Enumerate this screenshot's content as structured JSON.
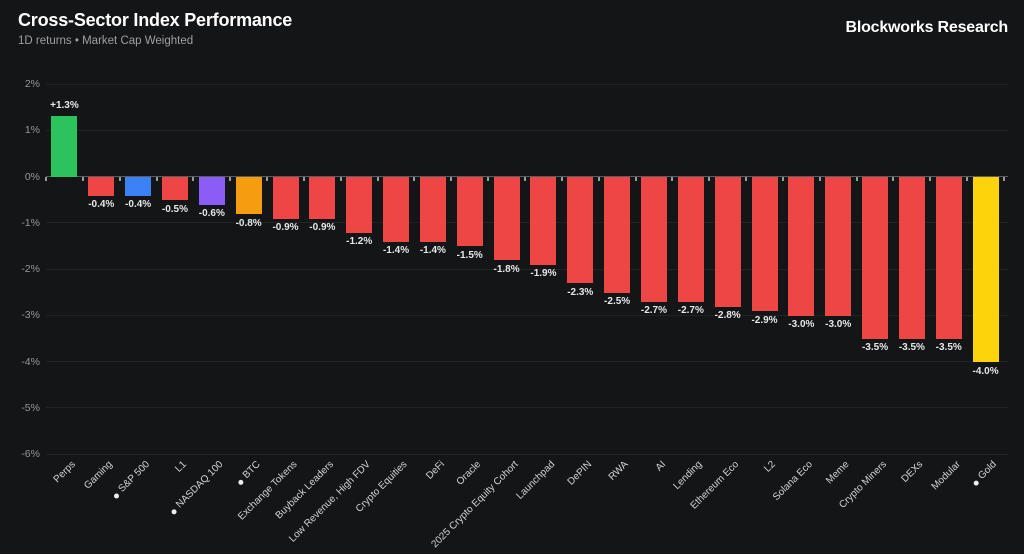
{
  "header": {
    "title": "Cross-Sector Index Performance",
    "subtitle": "1D returns • Market Cap Weighted",
    "brand": "Blockworks Research"
  },
  "chart_data": {
    "type": "bar",
    "title": "Cross-Sector Index Performance",
    "subtitle": "1D returns • Market Cap Weighted",
    "xlabel": "",
    "ylabel": "",
    "ylim": [
      -6,
      2
    ],
    "grid": "horizontal",
    "legend": "none",
    "yticks": [
      {
        "v": 2,
        "label": "2%"
      },
      {
        "v": 1,
        "label": "1%"
      },
      {
        "v": 0,
        "label": "0%"
      },
      {
        "v": -1,
        "label": "-1%"
      },
      {
        "v": -2,
        "label": "-2%"
      },
      {
        "v": -3,
        "label": "-3%"
      },
      {
        "v": -4,
        "label": "-4%"
      },
      {
        "v": -5,
        "label": "-5%"
      },
      {
        "v": -6,
        "label": "-6%"
      }
    ],
    "colors": {
      "green": "#2bc35e",
      "red": "#ee4545",
      "blue": "#3b82f6",
      "purple": "#8b5cf6",
      "orange": "#f59c0f",
      "yellow": "#fdd40c"
    },
    "bars": [
      {
        "label": "Perps",
        "value": 1.3,
        "display": "+1.3%",
        "color": "green",
        "benchmark": false
      },
      {
        "label": "Gaming",
        "value": -0.4,
        "display": "-0.4%",
        "color": "red",
        "benchmark": false
      },
      {
        "label": "S&P 500",
        "value": -0.4,
        "display": "-0.4%",
        "color": "blue",
        "benchmark": true
      },
      {
        "label": "L1",
        "value": -0.5,
        "display": "-0.5%",
        "color": "red",
        "benchmark": false
      },
      {
        "label": "NASDAQ 100",
        "value": -0.6,
        "display": "-0.6%",
        "color": "purple",
        "benchmark": true
      },
      {
        "label": "BTC",
        "value": -0.8,
        "display": "-0.8%",
        "color": "orange",
        "benchmark": true
      },
      {
        "label": "Exchange Tokens",
        "value": -0.9,
        "display": "-0.9%",
        "color": "red",
        "benchmark": false
      },
      {
        "label": "Buyback Leaders",
        "value": -0.9,
        "display": "-0.9%",
        "color": "red",
        "benchmark": false
      },
      {
        "label": "Low Revenue, High FDV",
        "value": -1.2,
        "display": "-1.2%",
        "color": "red",
        "benchmark": false
      },
      {
        "label": "Crypto Equities",
        "value": -1.4,
        "display": "-1.4%",
        "color": "red",
        "benchmark": false
      },
      {
        "label": "DeFi",
        "value": -1.4,
        "display": "-1.4%",
        "color": "red",
        "benchmark": false
      },
      {
        "label": "Oracle",
        "value": -1.5,
        "display": "-1.5%",
        "color": "red",
        "benchmark": false
      },
      {
        "label": "2025 Crypto Equity Cohort",
        "value": -1.8,
        "display": "-1.8%",
        "color": "red",
        "benchmark": false
      },
      {
        "label": "Launchpad",
        "value": -1.9,
        "display": "-1.9%",
        "color": "red",
        "benchmark": false
      },
      {
        "label": "DePIN",
        "value": -2.3,
        "display": "-2.3%",
        "color": "red",
        "benchmark": false
      },
      {
        "label": "RWA",
        "value": -2.5,
        "display": "-2.5%",
        "color": "red",
        "benchmark": false
      },
      {
        "label": "AI",
        "value": -2.7,
        "display": "-2.7%",
        "color": "red",
        "benchmark": false
      },
      {
        "label": "Lending",
        "value": -2.7,
        "display": "-2.7%",
        "color": "red",
        "benchmark": false
      },
      {
        "label": "Ethereum Eco",
        "value": -2.8,
        "display": "-2.8%",
        "color": "red",
        "benchmark": false
      },
      {
        "label": "L2",
        "value": -2.9,
        "display": "-2.9%",
        "color": "red",
        "benchmark": false
      },
      {
        "label": "Solana Eco",
        "value": -3.0,
        "display": "-3.0%",
        "color": "red",
        "benchmark": false
      },
      {
        "label": "Meme",
        "value": -3.0,
        "display": "-3.0%",
        "color": "red",
        "benchmark": false
      },
      {
        "label": "Crypto Miners",
        "value": -3.5,
        "display": "-3.5%",
        "color": "red",
        "benchmark": false
      },
      {
        "label": "DEXs",
        "value": -3.5,
        "display": "-3.5%",
        "color": "red",
        "benchmark": false
      },
      {
        "label": "Modular",
        "value": -3.5,
        "display": "-3.5%",
        "color": "red",
        "benchmark": false
      },
      {
        "label": "Gold",
        "value": -4.0,
        "display": "-4.0%",
        "color": "yellow",
        "benchmark": true
      }
    ]
  }
}
